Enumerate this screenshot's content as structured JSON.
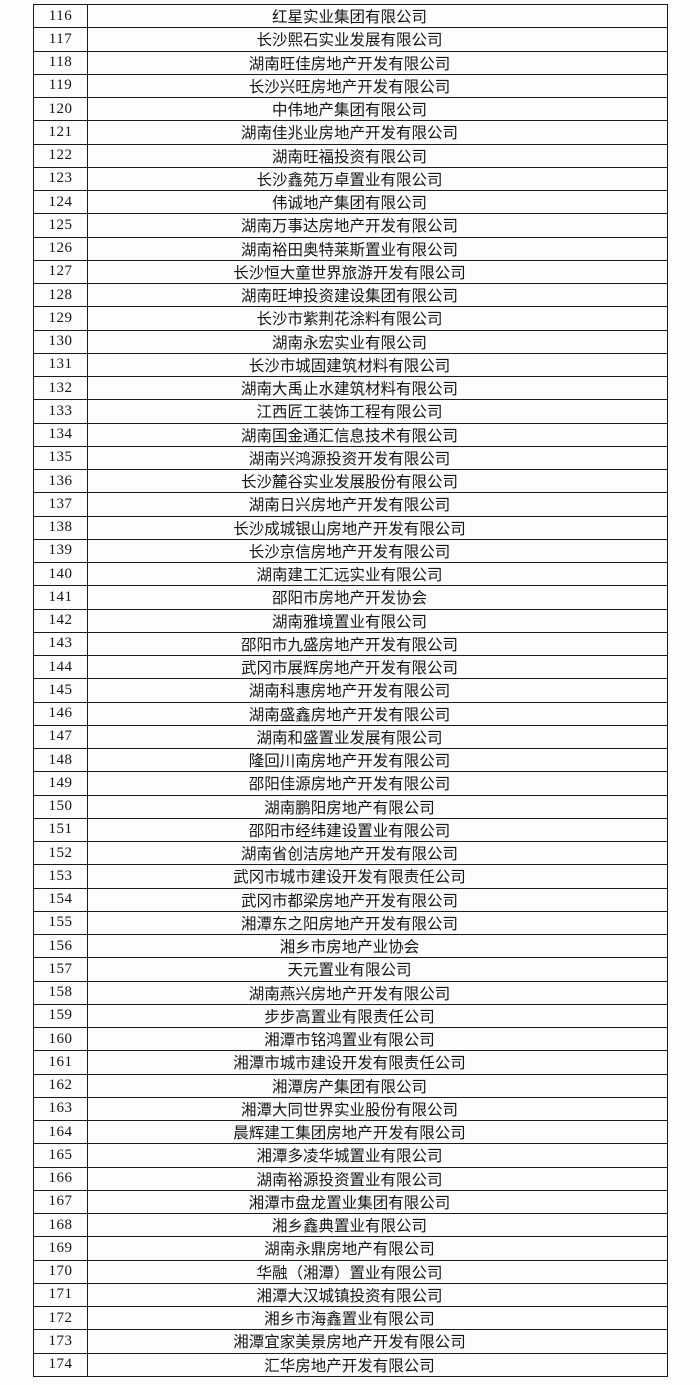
{
  "document": {
    "type": "company-list-table",
    "first_row_number": "116",
    "last_row_number": "174"
  },
  "colors": {
    "background": "#fdfdfd",
    "border": "#1b1b1b",
    "text": "#151515"
  },
  "table": {
    "rows": [
      {
        "no": "116",
        "name": "红星实业集团有限公司"
      },
      {
        "no": "117",
        "name": "长沙熙石实业发展有限公司"
      },
      {
        "no": "118",
        "name": "湖南旺佳房地产开发有限公司"
      },
      {
        "no": "119",
        "name": "长沙兴旺房地产开发有限公司"
      },
      {
        "no": "120",
        "name": "中伟地产集团有限公司"
      },
      {
        "no": "121",
        "name": "湖南佳兆业房地产开发有限公司"
      },
      {
        "no": "122",
        "name": "湖南旺福投资有限公司"
      },
      {
        "no": "123",
        "name": "长沙鑫苑万卓置业有限公司"
      },
      {
        "no": "124",
        "name": "伟诚地产集团有限公司"
      },
      {
        "no": "125",
        "name": "湖南万事达房地产开发有限公司"
      },
      {
        "no": "126",
        "name": "湖南裕田奥特莱斯置业有限公司"
      },
      {
        "no": "127",
        "name": "长沙恒大童世界旅游开发有限公司"
      },
      {
        "no": "128",
        "name": "湖南旺坤投资建设集团有限公司"
      },
      {
        "no": "129",
        "name": "长沙市紫荆花涂料有限公司"
      },
      {
        "no": "130",
        "name": "湖南永宏实业有限公司"
      },
      {
        "no": "131",
        "name": "长沙市城固建筑材料有限公司"
      },
      {
        "no": "132",
        "name": "湖南大禹止水建筑材料有限公司"
      },
      {
        "no": "133",
        "name": "江西匠工装饰工程有限公司"
      },
      {
        "no": "134",
        "name": "湖南国金通汇信息技术有限公司"
      },
      {
        "no": "135",
        "name": "湖南兴鸿源投资开发有限公司"
      },
      {
        "no": "136",
        "name": "长沙麓谷实业发展股份有限公司"
      },
      {
        "no": "137",
        "name": "湖南日兴房地产开发有限公司"
      },
      {
        "no": "138",
        "name": "长沙成城银山房地产开发有限公司"
      },
      {
        "no": "139",
        "name": "长沙京信房地产开发有限公司"
      },
      {
        "no": "140",
        "name": "湖南建工汇远实业有限公司"
      },
      {
        "no": "141",
        "name": "邵阳市房地产开发协会"
      },
      {
        "no": "142",
        "name": "湖南雅境置业有限公司"
      },
      {
        "no": "143",
        "name": "邵阳市九盛房地产开发有限公司"
      },
      {
        "no": "144",
        "name": "武冈市展辉房地产开发有限公司"
      },
      {
        "no": "145",
        "name": "湖南科惠房地产开发有限公司"
      },
      {
        "no": "146",
        "name": "湖南盛鑫房地产开发有限公司"
      },
      {
        "no": "147",
        "name": "湖南和盛置业发展有限公司"
      },
      {
        "no": "148",
        "name": "隆回川南房地产开发有限公司"
      },
      {
        "no": "149",
        "name": "邵阳佳源房地产开发有限公司"
      },
      {
        "no": "150",
        "name": "湖南鹏阳房地产有限公司"
      },
      {
        "no": "151",
        "name": "邵阳市经纬建设置业有限公司"
      },
      {
        "no": "152",
        "name": "湖南省创洁房地产开发有限公司"
      },
      {
        "no": "153",
        "name": "武冈市城市建设开发有限责任公司"
      },
      {
        "no": "154",
        "name": "武冈市都梁房地产开发有限公司"
      },
      {
        "no": "155",
        "name": "湘潭东之阳房地产开发有限公司"
      },
      {
        "no": "156",
        "name": "湘乡市房地产业协会"
      },
      {
        "no": "157",
        "name": "天元置业有限公司"
      },
      {
        "no": "158",
        "name": "湖南燕兴房地产开发有限公司"
      },
      {
        "no": "159",
        "name": "步步高置业有限责任公司"
      },
      {
        "no": "160",
        "name": "湘潭市铭鸿置业有限公司"
      },
      {
        "no": "161",
        "name": "湘潭市城市建设开发有限责任公司"
      },
      {
        "no": "162",
        "name": "湘潭房产集团有限公司"
      },
      {
        "no": "163",
        "name": "湘潭大同世界实业股份有限公司"
      },
      {
        "no": "164",
        "name": "晨辉建工集团房地产开发有限公司"
      },
      {
        "no": "165",
        "name": "湘潭多凌华城置业有限公司"
      },
      {
        "no": "166",
        "name": "湖南裕源投资置业有限公司"
      },
      {
        "no": "167",
        "name": "湘潭市盘龙置业集团有限公司"
      },
      {
        "no": "168",
        "name": "湘乡鑫典置业有限公司"
      },
      {
        "no": "169",
        "name": "湖南永鼎房地产有限公司"
      },
      {
        "no": "170",
        "name": "华融（湘潭）置业有限公司"
      },
      {
        "no": "171",
        "name": "湘潭大汉城镇投资有限公司"
      },
      {
        "no": "172",
        "name": "湘乡市海鑫置业有限公司"
      },
      {
        "no": "173",
        "name": "湘潭宜家美景房地产开发有限公司"
      },
      {
        "no": "174",
        "name": "汇华房地产开发有限公司"
      }
    ]
  }
}
